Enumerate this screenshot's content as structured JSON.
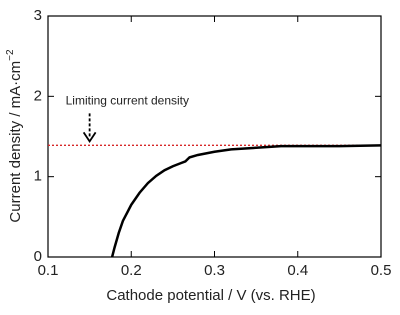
{
  "chart_data": {
    "type": "line",
    "xlabel": "Cathode potential / V (vs. RHE)",
    "ylabel": "Current density / mA·cm",
    "ylabel_sup": "−2",
    "x": [
      0.177,
      0.18,
      0.185,
      0.19,
      0.2,
      0.21,
      0.22,
      0.23,
      0.24,
      0.25,
      0.26,
      0.265,
      0.27,
      0.28,
      0.3,
      0.32,
      0.35,
      0.38,
      0.4,
      0.45,
      0.5
    ],
    "series": [
      {
        "color": "#000000",
        "values": [
          0,
          0.12,
          0.3,
          0.45,
          0.65,
          0.8,
          0.92,
          1.01,
          1.08,
          1.13,
          1.17,
          1.19,
          1.24,
          1.27,
          1.31,
          1.34,
          1.36,
          1.38,
          1.38,
          1.38,
          1.39
        ]
      }
    ],
    "hline": {
      "value": 1.39,
      "color": "#d62728"
    },
    "annotation": {
      "text": "Limiting current density",
      "x": 0.15,
      "y": 1.39
    },
    "xlim": [
      0.1,
      0.5
    ],
    "xticks": [
      0.1,
      0.2,
      0.3,
      0.4,
      0.5
    ],
    "ylim": [
      0,
      3
    ],
    "yticks": [
      0,
      1,
      2,
      3
    ]
  }
}
